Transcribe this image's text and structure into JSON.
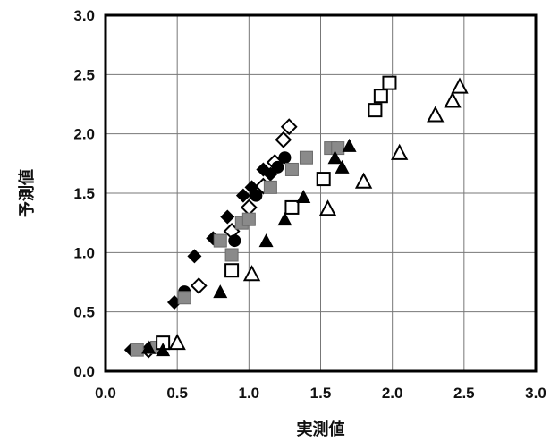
{
  "chart_data": {
    "type": "scatter",
    "xlabel": "実測値",
    "ylabel": "予測値",
    "xlim": [
      0,
      3
    ],
    "ylim": [
      0,
      3
    ],
    "x_ticks": [
      "0.0",
      "0.5",
      "1.0",
      "1.5",
      "2.0",
      "2.5",
      "3.0"
    ],
    "y_ticks": [
      "0.0",
      "0.5",
      "1.0",
      "1.5",
      "2.0",
      "2.5",
      "3.0"
    ],
    "grid": true,
    "series": [
      {
        "marker": "diamond-filled",
        "color": "#000000",
        "points": [
          [
            0.18,
            0.18
          ],
          [
            0.3,
            0.18
          ],
          [
            0.48,
            0.58
          ],
          [
            0.62,
            0.97
          ],
          [
            0.75,
            1.12
          ],
          [
            0.85,
            1.3
          ],
          [
            0.96,
            1.48
          ],
          [
            1.02,
            1.55
          ],
          [
            1.1,
            1.7
          ],
          [
            1.15,
            1.66
          ]
        ]
      },
      {
        "marker": "diamond-open",
        "color": "#000000",
        "points": [
          [
            0.65,
            0.72
          ],
          [
            0.88,
            1.18
          ],
          [
            1.0,
            1.38
          ],
          [
            1.1,
            1.56
          ],
          [
            1.18,
            1.76
          ],
          [
            1.24,
            1.95
          ],
          [
            1.28,
            2.06
          ],
          [
            0.3,
            0.18
          ]
        ]
      },
      {
        "marker": "circle-filled",
        "color": "#000000",
        "points": [
          [
            0.2,
            0.18
          ],
          [
            0.32,
            0.2
          ],
          [
            0.55,
            0.67
          ],
          [
            0.9,
            1.1
          ],
          [
            1.05,
            1.48
          ],
          [
            1.2,
            1.72
          ],
          [
            1.25,
            1.8
          ]
        ]
      },
      {
        "marker": "square-gray",
        "color": "#8a8a8a",
        "points": [
          [
            0.22,
            0.18
          ],
          [
            0.36,
            0.2
          ],
          [
            0.55,
            0.62
          ],
          [
            0.8,
            1.1
          ],
          [
            0.88,
            0.98
          ],
          [
            0.95,
            1.25
          ],
          [
            1.0,
            1.28
          ],
          [
            1.15,
            1.55
          ],
          [
            1.3,
            1.7
          ],
          [
            1.4,
            1.8
          ],
          [
            1.57,
            1.88
          ],
          [
            1.62,
            1.88
          ]
        ]
      },
      {
        "marker": "square-open",
        "color": "#000000",
        "points": [
          [
            0.4,
            0.24
          ],
          [
            0.88,
            0.85
          ],
          [
            1.3,
            1.38
          ],
          [
            1.52,
            1.62
          ],
          [
            1.88,
            2.2
          ],
          [
            1.92,
            2.32
          ],
          [
            1.98,
            2.43
          ]
        ]
      },
      {
        "marker": "triangle-filled",
        "color": "#000000",
        "points": [
          [
            0.3,
            0.2
          ],
          [
            0.4,
            0.18
          ],
          [
            0.8,
            0.67
          ],
          [
            1.12,
            1.1
          ],
          [
            1.25,
            1.28
          ],
          [
            1.38,
            1.47
          ],
          [
            1.6,
            1.8
          ],
          [
            1.65,
            1.72
          ],
          [
            1.7,
            1.9
          ]
        ]
      },
      {
        "marker": "triangle-open",
        "color": "#000000",
        "points": [
          [
            0.5,
            0.24
          ],
          [
            1.02,
            0.82
          ],
          [
            1.55,
            1.37
          ],
          [
            1.8,
            1.6
          ],
          [
            2.05,
            1.84
          ],
          [
            2.3,
            2.16
          ],
          [
            2.42,
            2.28
          ],
          [
            2.47,
            2.4
          ]
        ]
      }
    ]
  }
}
